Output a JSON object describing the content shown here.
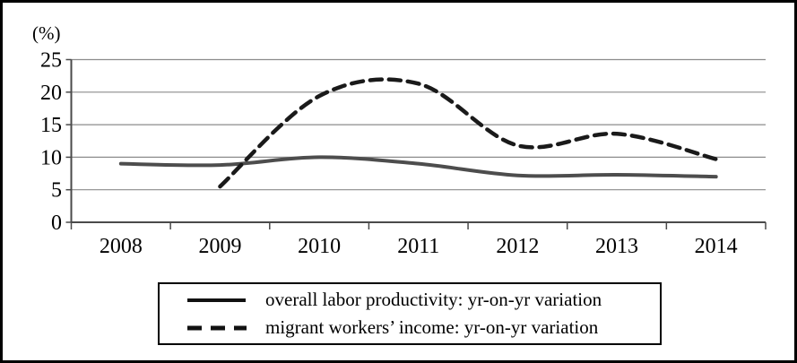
{
  "frame": {
    "background": "#ffffff",
    "border_color": "#000000"
  },
  "chart_data": {
    "type": "line",
    "title": "",
    "xlabel": "",
    "ylabel": "(%)",
    "categories": [
      "2008",
      "2009",
      "2010",
      "2011",
      "2012",
      "2013",
      "2014"
    ],
    "y_ticks": [
      0,
      5,
      10,
      15,
      20,
      25
    ],
    "ylim": [
      0,
      25
    ],
    "grid": true,
    "legend_position": "bottom-box",
    "axis_color": "#4a4a4a",
    "gridline_color": "#8c8c8c",
    "series": [
      {
        "name": "overall labor productivity: yr-on-yr variation",
        "style": "solid",
        "color": "#4d4d4d",
        "values": [
          9.0,
          8.8,
          10.0,
          9.0,
          7.2,
          7.3,
          7.0
        ]
      },
      {
        "name": "migrant workers’ income: yr-on-yr variation",
        "style": "dashed",
        "color": "#1a1a1a",
        "values": [
          null,
          5.5,
          19.4,
          21.3,
          11.8,
          13.6,
          9.7
        ]
      }
    ]
  }
}
